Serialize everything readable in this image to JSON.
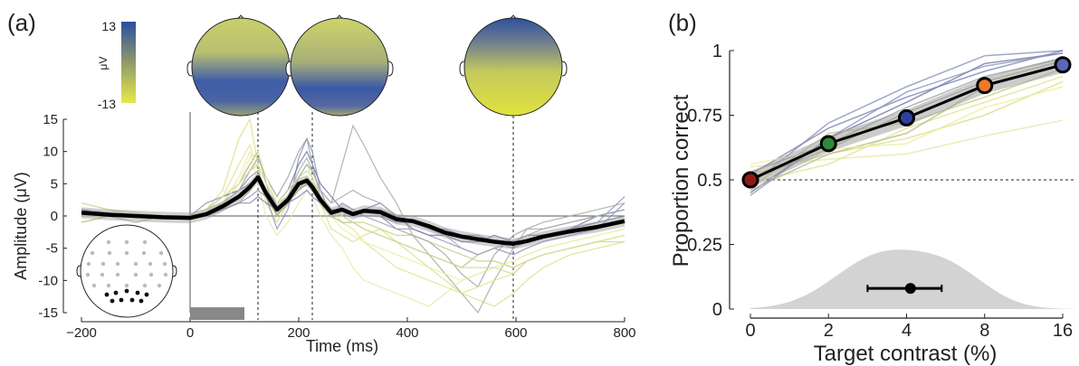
{
  "panel_a": {
    "label": "(a)",
    "colorbar": {
      "max_label": "13",
      "min_label": "-13",
      "unit": "μV",
      "colors": [
        "#2a4f9e",
        "#8f9a6a",
        "#e8e84a"
      ]
    },
    "headmaps": [
      {
        "time_ms": 125
      },
      {
        "time_ms": 225
      },
      {
        "time_ms": 595
      }
    ]
  },
  "panel_b": {
    "label": "(b)"
  },
  "chart_data": [
    {
      "type": "line",
      "xlabel": "Time (ms)",
      "ylabel": "Amplitude (μV)",
      "xlim": [
        -200,
        800
      ],
      "ylim": [
        -15,
        15
      ],
      "xticks": [
        -200,
        0,
        200,
        400,
        600,
        800
      ],
      "xtick_labels": [
        "−200",
        "0",
        "200",
        "400",
        "600",
        "800"
      ],
      "yticks": [
        15,
        10,
        5,
        0,
        -5,
        -10,
        -15
      ],
      "ytick_labels": [
        "15",
        "10",
        "5",
        "0",
        "-5",
        "-10",
        "-15"
      ],
      "stimulus_interval_ms": [
        0,
        100
      ],
      "dashed_times_ms": [
        125,
        225,
        595
      ],
      "grand_average": {
        "x": [
          -200,
          -150,
          -100,
          -50,
          0,
          30,
          60,
          90,
          110,
          125,
          140,
          160,
          180,
          200,
          215,
          225,
          240,
          260,
          280,
          300,
          320,
          350,
          380,
          410,
          440,
          470,
          500,
          530,
          560,
          595,
          620,
          650,
          700,
          750,
          800
        ],
        "y": [
          0.5,
          0.2,
          0,
          -0.2,
          -0.3,
          0.3,
          1.5,
          3.0,
          4.5,
          6.0,
          3.5,
          1.0,
          2.5,
          5.0,
          5.5,
          4.5,
          2.5,
          0.5,
          1.0,
          0.3,
          0.8,
          0.6,
          -0.5,
          -0.8,
          -1.6,
          -2.6,
          -3.2,
          -3.6,
          -4.0,
          -4.3,
          -3.9,
          -3.2,
          -2.4,
          -1.7,
          -0.8
        ]
      },
      "individual_traces": [
        {
          "color": "#d9df8a",
          "y": [
            2,
            1,
            0.5,
            0,
            0,
            1,
            4,
            12,
            15,
            8,
            2,
            -1,
            2,
            6,
            8,
            6,
            2,
            -2,
            -3,
            -4,
            -3,
            -2,
            -4,
            -6,
            -8,
            -10,
            -12,
            -13,
            -14,
            -12,
            -10,
            -8,
            -6,
            -5,
            -4
          ]
        },
        {
          "color": "#8890b8",
          "y": [
            1,
            0.5,
            0,
            0,
            0,
            2,
            3,
            4,
            6,
            7,
            3,
            -2,
            1,
            9,
            12,
            10,
            4,
            0,
            2,
            1,
            0,
            0,
            -2,
            -2,
            -3,
            -4,
            -5,
            -6,
            -5,
            -6,
            -5,
            -4,
            -3,
            -2,
            2
          ]
        },
        {
          "color": "#a8ac96",
          "y": [
            0,
            0,
            -1,
            0,
            0,
            1,
            2,
            5,
            8,
            10,
            5,
            0,
            3,
            7,
            9,
            7,
            4,
            2,
            8,
            14,
            11,
            6,
            2,
            -3,
            -6,
            -9,
            -12,
            -15,
            -10,
            -5,
            -2,
            -1,
            0,
            1,
            2
          ]
        },
        {
          "color": "#e6e9a8",
          "y": [
            -1,
            0,
            0,
            0,
            0,
            0,
            2,
            6,
            10,
            5,
            0,
            -3,
            -1,
            2,
            4,
            3,
            0,
            -3,
            -5,
            -8,
            -10,
            -11,
            -12,
            -13,
            -14,
            -12,
            -10,
            -9,
            -8,
            -7,
            -6,
            -5,
            -4,
            -3,
            -2
          ]
        },
        {
          "color": "#6f78a6",
          "y": [
            1,
            0,
            0,
            0,
            0,
            1,
            3,
            4,
            5,
            6,
            4,
            2,
            4,
            8,
            10,
            8,
            5,
            3,
            1,
            0,
            1,
            2,
            0,
            -2,
            -3,
            -3,
            -4,
            -4,
            -3,
            -4,
            -4,
            -3,
            -2,
            0,
            1
          ]
        },
        {
          "color": "#c9cc7a",
          "y": [
            0,
            0,
            0,
            0,
            0,
            0,
            1,
            3,
            5,
            6,
            3,
            1,
            2,
            4,
            5,
            4,
            2,
            0,
            0,
            -1,
            -1,
            -2,
            -3,
            -3,
            -4,
            -5,
            -6,
            -7,
            -7,
            -8,
            -7,
            -6,
            -5,
            -4,
            -3
          ]
        },
        {
          "color": "#9ea2a0",
          "y": [
            0,
            0,
            0,
            0,
            0,
            0,
            2,
            4,
            7,
            9,
            6,
            3,
            6,
            10,
            12,
            8,
            3,
            0,
            0,
            1,
            0,
            -1,
            -2,
            -3,
            -4,
            -6,
            -9,
            -11,
            -6,
            -3,
            -2,
            -2,
            -1,
            0,
            1
          ]
        },
        {
          "color": "#8d94c0",
          "y": [
            1,
            0,
            0,
            0,
            0,
            0,
            1,
            2,
            3,
            4,
            3,
            1,
            2,
            4,
            5,
            5,
            3,
            1,
            1,
            0,
            1,
            1,
            0,
            -1,
            -2,
            -3,
            -4,
            -4,
            -4,
            -5,
            -4,
            -3,
            -2,
            -1,
            3
          ]
        },
        {
          "color": "#e0e38c",
          "y": [
            0,
            0,
            0,
            0,
            0,
            1,
            3,
            8,
            11,
            7,
            3,
            0,
            3,
            5,
            6,
            5,
            3,
            1,
            -1,
            -2,
            -4,
            -6,
            -8,
            -9,
            -10,
            -11,
            -12,
            -11,
            -10,
            -9,
            -7,
            -6,
            -5,
            -4,
            -3
          ]
        },
        {
          "color": "#b5b88a",
          "y": [
            -1,
            0,
            0,
            0,
            0,
            0,
            1,
            2,
            4,
            6,
            3,
            0,
            2,
            4,
            6,
            5,
            2,
            0,
            -1,
            -1,
            -2,
            -3,
            -4,
            -5,
            -6,
            -7,
            -8,
            -6,
            -5,
            -4,
            -3,
            -3,
            -2,
            -2,
            -1
          ]
        },
        {
          "color": "#7d84b2",
          "y": [
            0,
            0,
            0,
            0,
            0,
            0,
            1,
            2,
            2,
            3,
            2,
            1,
            2,
            3,
            4,
            3,
            2,
            1,
            1,
            0,
            0,
            0,
            -1,
            -1,
            -2,
            -2,
            -3,
            -3,
            -4,
            -4,
            -3,
            -3,
            -2,
            -1,
            0
          ]
        },
        {
          "color": "#d4d794",
          "y": [
            2,
            1,
            0,
            0,
            0,
            1,
            3,
            5,
            7,
            8,
            5,
            2,
            4,
            6,
            7,
            6,
            3,
            1,
            0,
            -1,
            -2,
            -3,
            -4,
            -5,
            -6,
            -7,
            -8,
            -8,
            -8,
            -9,
            -7,
            -6,
            -5,
            -4,
            -4
          ]
        },
        {
          "color": "#a5a8b4",
          "y": [
            0,
            0,
            0,
            0,
            0,
            0,
            2,
            4,
            6,
            7,
            4,
            1,
            3,
            6,
            8,
            7,
            4,
            2,
            3,
            4,
            3,
            2,
            0,
            -1,
            -2,
            -3,
            -5,
            -6,
            -5,
            -4,
            -3,
            -2,
            -1,
            0,
            1
          ]
        },
        {
          "color": "#ecee9e",
          "y": [
            0,
            0,
            0,
            0,
            0,
            1,
            2,
            5,
            9,
            10,
            6,
            2,
            3,
            5,
            6,
            5,
            2,
            0,
            -2,
            -3,
            -4,
            -5,
            -6,
            -7,
            -8,
            -9,
            -10,
            -9,
            -8,
            -7,
            -6,
            -5,
            -4,
            -3,
            -2
          ]
        }
      ]
    },
    {
      "type": "line",
      "xlabel": "Target contrast (%)",
      "ylabel": "Proportion correct",
      "xlim": [
        0,
        16
      ],
      "ylim": [
        0,
        1
      ],
      "xtick_labels": [
        "0",
        "2",
        "4",
        "8",
        "16"
      ],
      "ytick_labels": [
        "0",
        "0.25",
        "0.5",
        "0.75",
        "1"
      ],
      "yticks": [
        0,
        0.25,
        0.5,
        0.75,
        1
      ],
      "chance_level": 0.5,
      "mean_points": [
        {
          "contrast": 0,
          "y": 0.5,
          "color": "#8b1c18"
        },
        {
          "contrast": 2,
          "y": 0.64,
          "color": "#2e8b3a"
        },
        {
          "contrast": 4,
          "y": 0.74,
          "color": "#2f3fa0"
        },
        {
          "contrast": 8,
          "y": 0.865,
          "color": "#f07a2a"
        },
        {
          "contrast": 16,
          "y": 0.945,
          "color": "#5a66b8"
        }
      ],
      "individual_traces": [
        {
          "color": "#8890b8",
          "y": [
            0.48,
            0.72,
            0.86,
            0.98,
            1.0
          ]
        },
        {
          "color": "#d9df8a",
          "y": [
            0.52,
            0.6,
            0.66,
            0.75,
            0.88
          ]
        },
        {
          "color": "#6f78a6",
          "y": [
            0.45,
            0.66,
            0.8,
            0.95,
            0.99
          ]
        },
        {
          "color": "#e6e9a8",
          "y": [
            0.55,
            0.58,
            0.6,
            0.67,
            0.73
          ]
        },
        {
          "color": "#a8ac96",
          "y": [
            0.5,
            0.62,
            0.76,
            0.88,
            0.96
          ]
        },
        {
          "color": "#c9cc7a",
          "y": [
            0.47,
            0.68,
            0.72,
            0.82,
            0.93
          ]
        },
        {
          "color": "#7d84b2",
          "y": [
            0.52,
            0.7,
            0.82,
            0.92,
            1.0
          ]
        },
        {
          "color": "#e0e38c",
          "y": [
            0.49,
            0.56,
            0.7,
            0.8,
            0.9
          ]
        },
        {
          "color": "#9ea2a0",
          "y": [
            0.53,
            0.64,
            0.78,
            0.9,
            0.97
          ]
        },
        {
          "color": "#b5b88a",
          "y": [
            0.46,
            0.6,
            0.68,
            0.86,
            0.95
          ]
        },
        {
          "color": "#8d94c0",
          "y": [
            0.44,
            0.66,
            0.84,
            0.94,
            0.99
          ]
        },
        {
          "color": "#ecee9e",
          "y": [
            0.56,
            0.62,
            0.64,
            0.78,
            0.86
          ]
        }
      ],
      "threshold_estimate": {
        "contrast": 4.2,
        "ci": [
          3.0,
          5.8
        ],
        "y": 0.08
      }
    }
  ]
}
